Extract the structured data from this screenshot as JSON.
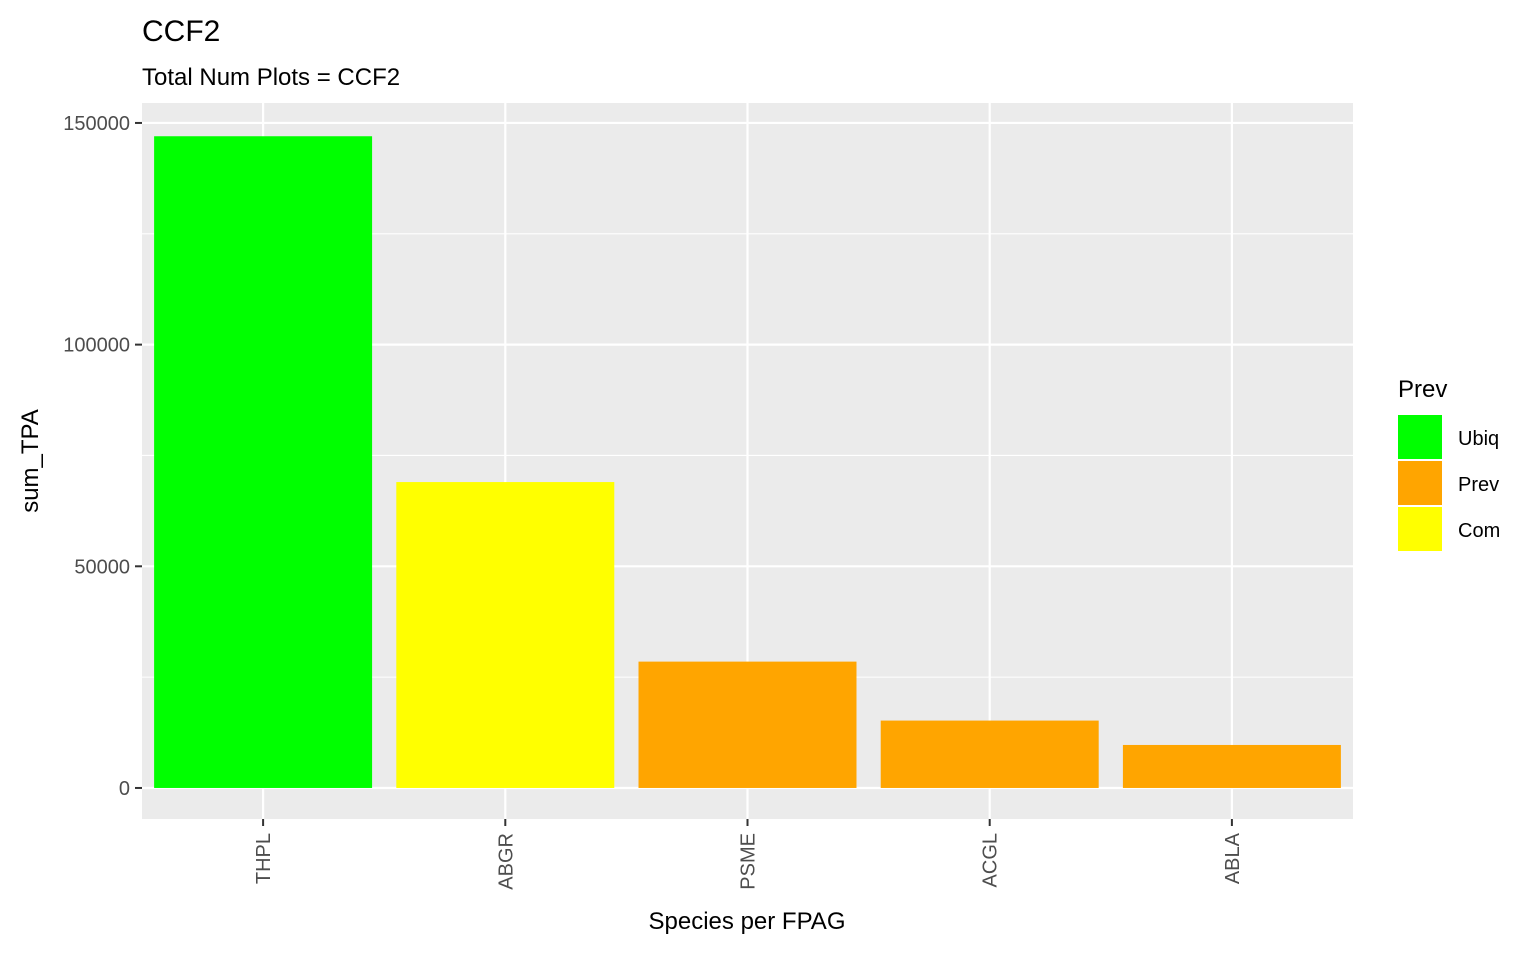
{
  "chart_data": {
    "type": "bar",
    "title": "CCF2",
    "subtitle": "Total Num Plots = CCF2",
    "xlabel": "Species per FPAG",
    "ylabel": "sum_TPA",
    "categories": [
      "THPL",
      "ABGR",
      "PSME",
      "ACGL",
      "ABLA"
    ],
    "values": [
      147000,
      69000,
      28500,
      15200,
      9700
    ],
    "groups": [
      "Ubiq",
      "Com",
      "Prev",
      "Prev",
      "Prev"
    ],
    "ylim": [
      -7000,
      154500
    ],
    "yticks": [
      0,
      50000,
      100000,
      150000
    ],
    "ytick_labels": [
      "0",
      "50000",
      "100000",
      "150000"
    ],
    "grid": true,
    "legend": {
      "title": "Prev",
      "position": "right",
      "entries": [
        {
          "label": "Ubiq",
          "color": "#00FF00"
        },
        {
          "label": "Prev",
          "color": "#FFA500"
        },
        {
          "label": "Com",
          "color": "#FFFF00"
        }
      ]
    },
    "panel_color": "#EBEBEB",
    "grid_color": "#FFFFFF"
  }
}
